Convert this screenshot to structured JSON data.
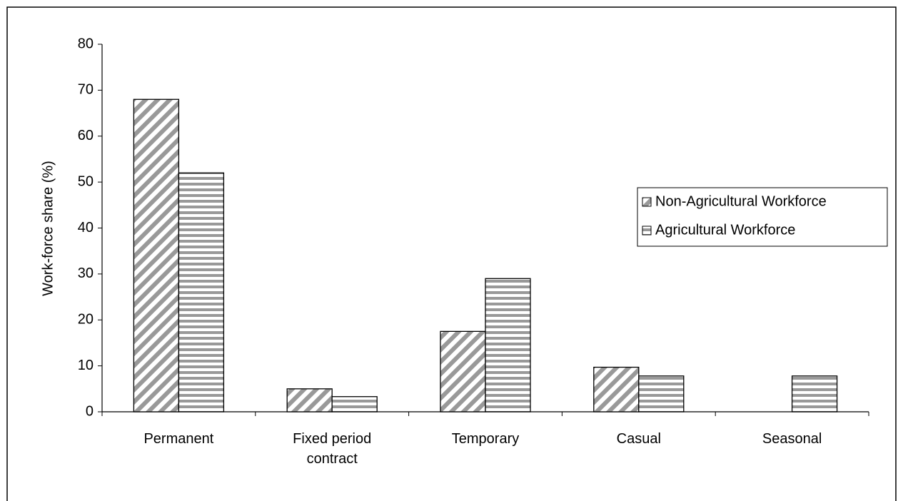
{
  "chart_data": {
    "type": "bar",
    "y_label": "Work-force share (%)",
    "categories": [
      "Permanent",
      "Fixed period contract",
      "Temporary",
      "Casual",
      "Seasonal"
    ],
    "series": [
      {
        "name": "Non-Agricultural Workforce",
        "color": "#999999",
        "pattern": "diagonal",
        "values": [
          68,
          5,
          17.5,
          9.7,
          null
        ]
      },
      {
        "name": "Agricultural Workforce",
        "color": "#999999",
        "pattern": "horizontal",
        "values": [
          52,
          3.3,
          29,
          7.8,
          7.8
        ]
      }
    ],
    "ylim": [
      0,
      80
    ],
    "yticks": [
      0,
      10,
      20,
      30,
      40,
      50,
      60,
      70,
      80
    ],
    "grid": false,
    "legend": "right"
  }
}
